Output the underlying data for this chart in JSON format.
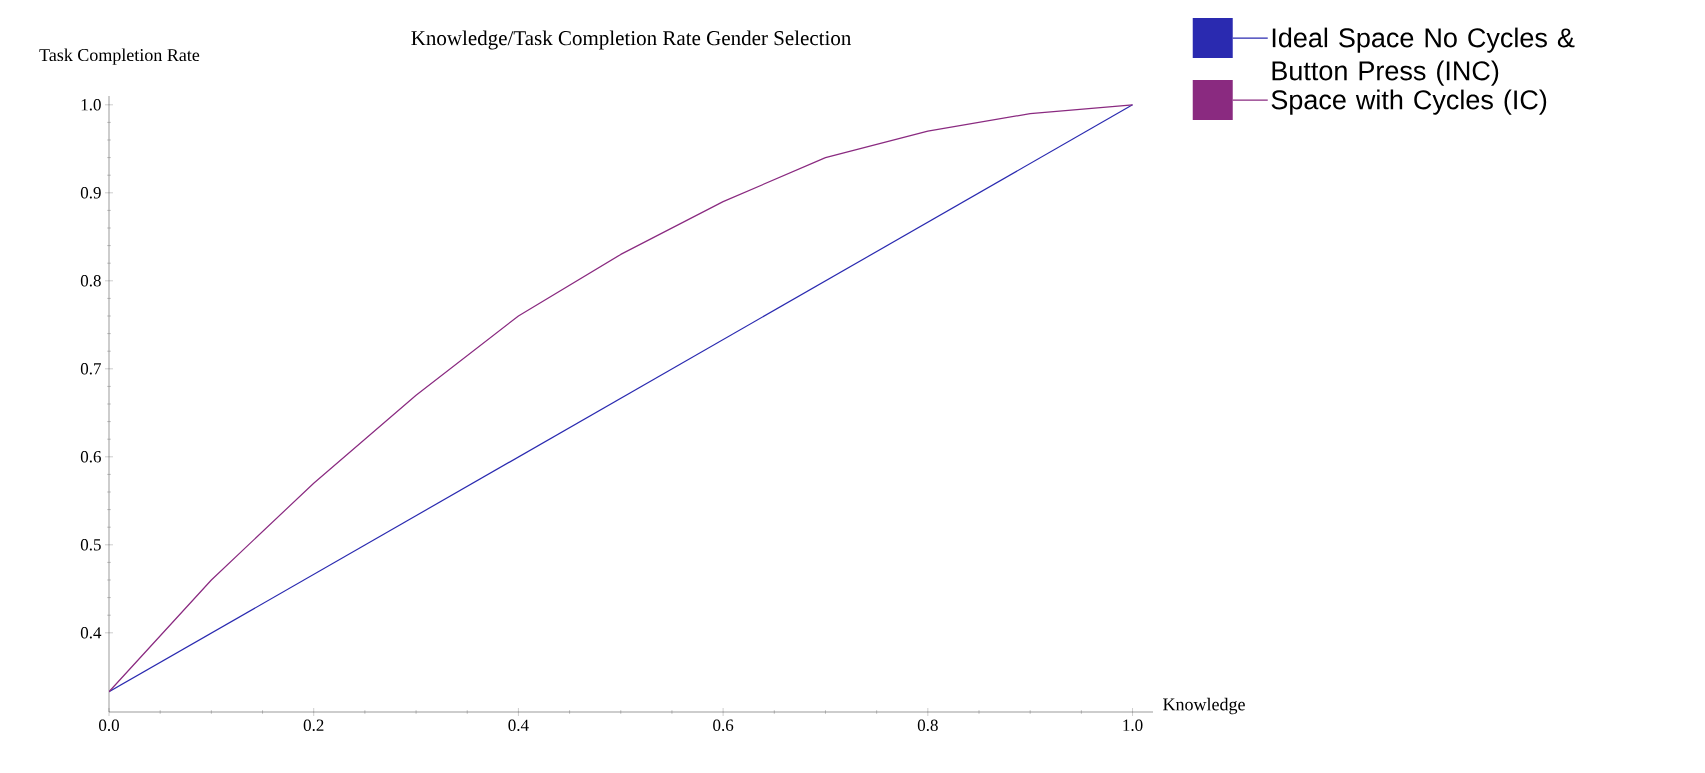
{
  "chart_data": {
    "type": "line",
    "title": "Knowledge/Task Completion Rate Gender Selection",
    "xlabel": "Knowledge",
    "ylabel": "Task Completion Rate",
    "xlim": [
      0,
      1.02
    ],
    "ylim": [
      0.31,
      1.01
    ],
    "xticks": [
      {
        "value": 0,
        "label": "0.0"
      },
      {
        "value": 0.2,
        "label": "0.2"
      },
      {
        "value": 0.4,
        "label": "0.4"
      },
      {
        "value": 0.6,
        "label": "0.6"
      },
      {
        "value": 0.8,
        "label": "0.8"
      },
      {
        "value": 1.0,
        "label": "1.0"
      }
    ],
    "yticks": [
      {
        "value": 0.4,
        "label": "0.4"
      },
      {
        "value": 0.5,
        "label": "0.5"
      },
      {
        "value": 0.6,
        "label": "0.6"
      },
      {
        "value": 0.7,
        "label": "0.7"
      },
      {
        "value": 0.8,
        "label": "0.8"
      },
      {
        "value": 0.9,
        "label": "0.9"
      },
      {
        "value": 1.0,
        "label": "1.0"
      }
    ],
    "legend": "top right",
    "marker": "none",
    "line_style": "solid",
    "series": [
      {
        "name": "Ideal Space No Cycles & Button Press (INC)",
        "color": "#2a2ab0",
        "x": [
          0,
          1.0
        ],
        "values": [
          0.333,
          1.0
        ]
      },
      {
        "name": "Space with Cycles (IC)",
        "color": "#8a2a80",
        "x": [
          0,
          0.1,
          0.2,
          0.3,
          0.4,
          0.5,
          0.6,
          0.7,
          0.8,
          0.9,
          1.0
        ],
        "values": [
          0.333,
          0.46,
          0.57,
          0.67,
          0.76,
          0.83,
          0.89,
          0.94,
          0.97,
          0.99,
          1.0
        ]
      }
    ]
  }
}
